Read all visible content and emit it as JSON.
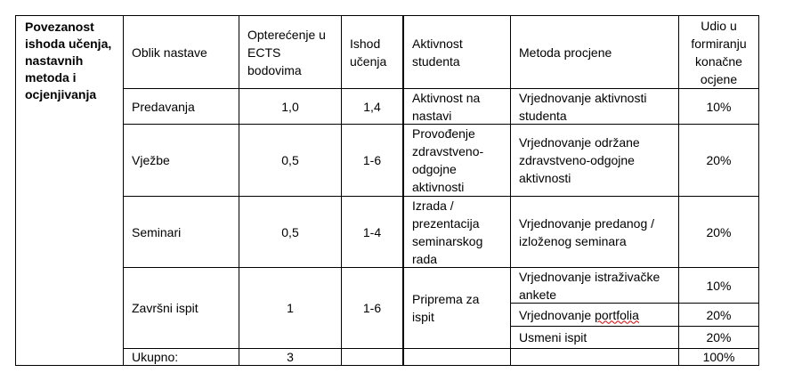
{
  "section_label": "Povezanost ishoda učenja, nastavnih metoda i ocjenjivanja",
  "headers": {
    "form": "Oblik nastave",
    "ects": "Opterećenje u ECTS bodovima",
    "outcome": "Ishod učenja",
    "activity": "Aktivnost studenta",
    "method": "Metoda procjene",
    "share": "Udio u formiranju konačne ocjene"
  },
  "rows": [
    {
      "form": "Predavanja",
      "ects": "1,0",
      "outcome": "1,4",
      "activity": "Aktivnost na nastavi",
      "methods": [
        {
          "method": "Vrjednovanje aktivnosti studenta",
          "share": "10%"
        }
      ]
    },
    {
      "form": "Vježbe",
      "ects": "0,5",
      "outcome": "1-6",
      "activity": "Provođenje zdravstveno-odgojne aktivnosti",
      "methods": [
        {
          "method": "Vrjednovanje održane zdravstveno-odgojne aktivnosti",
          "share": "20%"
        }
      ]
    },
    {
      "form": "Seminari",
      "ects": "0,5",
      "outcome": "1-4",
      "activity": "Izrada / prezentacija seminarskog rada",
      "methods": [
        {
          "method": "Vrjednovanje predanog / izloženog seminara",
          "share": "20%"
        }
      ]
    },
    {
      "form": "Završni ispit",
      "ects": "1",
      "outcome": "1-6",
      "activity": "Priprema za ispit",
      "methods": [
        {
          "method": "Vrjednovanje istraživačke ankete",
          "share": "10%"
        },
        {
          "method_prefix": "Vrjednovanje ",
          "method_word": "portfolia",
          "share": "20%"
        },
        {
          "method": "Usmeni ispit",
          "share": "20%"
        }
      ]
    }
  ],
  "total": {
    "label": "Ukupno:",
    "ects": "3",
    "share": "100%"
  }
}
